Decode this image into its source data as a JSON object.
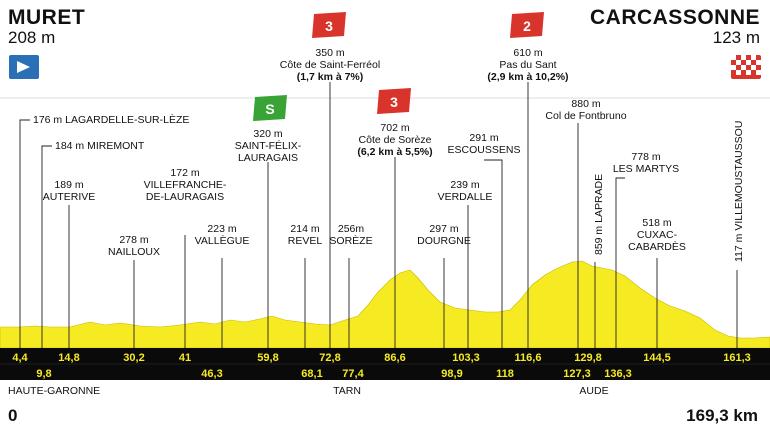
{
  "start": {
    "name": "MURET",
    "altitude": "208 m"
  },
  "finish": {
    "name": "CARCASSONNE",
    "altitude": "123 m"
  },
  "distance": {
    "start": "0",
    "end": "169,3 km"
  },
  "climbs": [
    {
      "category": "3",
      "alt": "350 m",
      "name": "Côte de Saint-Ferréol",
      "detail": "(1,7 km à 7%)",
      "color": "#d9342b"
    },
    {
      "category": "2",
      "alt": "610 m",
      "name": "Pas du Sant",
      "detail": "(2,9 km à 10,2%)",
      "color": "#d9342b"
    },
    {
      "category": "3",
      "alt": "702 m",
      "name": "Côte de Sorèze",
      "detail": "(6,2 km à 5,5%)",
      "color": "#d9342b"
    }
  ],
  "sprint": {
    "label": "S",
    "color": "#3aa335"
  },
  "waypoints": [
    {
      "alt": "176 m",
      "name": "LAGARDELLE-SUR-LÈZE"
    },
    {
      "alt": "184 m",
      "name": "MIREMONT"
    },
    {
      "alt": "189 m",
      "name": "AUTERIVE"
    },
    {
      "alt": "278 m",
      "name": "NAILLOUX"
    },
    {
      "alt": "172 m",
      "name1": "VILLEFRANCHE-",
      "name2": "DE-LAURAGAIS"
    },
    {
      "alt": "223 m",
      "name": "VALLÈGUE"
    },
    {
      "alt": "320 m",
      "name1": "SAINT-FÉLIX-",
      "name2": "LAURAGAIS"
    },
    {
      "alt": "214 m",
      "name": "REVEL"
    },
    {
      "alt": "256m",
      "name": "SORÈZE"
    },
    {
      "alt": "297 m",
      "name": "DOURGNE"
    },
    {
      "alt": "239 m",
      "name": "VERDALLE"
    },
    {
      "alt": "291 m",
      "name": "ESCOUSSENS"
    },
    {
      "alt": "880 m",
      "name": "Col de Fontbruno"
    },
    {
      "alt": "859 m",
      "name": "LAPRADE"
    },
    {
      "alt": "778 m",
      "name": "LES MARTYS"
    },
    {
      "alt": "518 m",
      "name1": "CUXAC-",
      "name2": "CABARDÈS"
    },
    {
      "alt": "117 m",
      "name": "VILLEMOUSTAUSSOU"
    }
  ],
  "km_upper": [
    "4,4",
    "14,8",
    "30,2",
    "41",
    "59,8",
    "72,8",
    "86,6",
    "103,3",
    "116,6",
    "129,8",
    "144,5",
    "161,3"
  ],
  "km_lower": [
    "9,8",
    "46,3",
    "68,1",
    "77,4",
    "98,9",
    "118",
    "127,3",
    "136,3"
  ],
  "departments": [
    "HAUTE-GARONNE",
    "TARN",
    "AUDE"
  ],
  "colors": {
    "profile": "#f6ea23",
    "band": "#0a0a0a",
    "start_flag": "#2b6fb6"
  }
}
